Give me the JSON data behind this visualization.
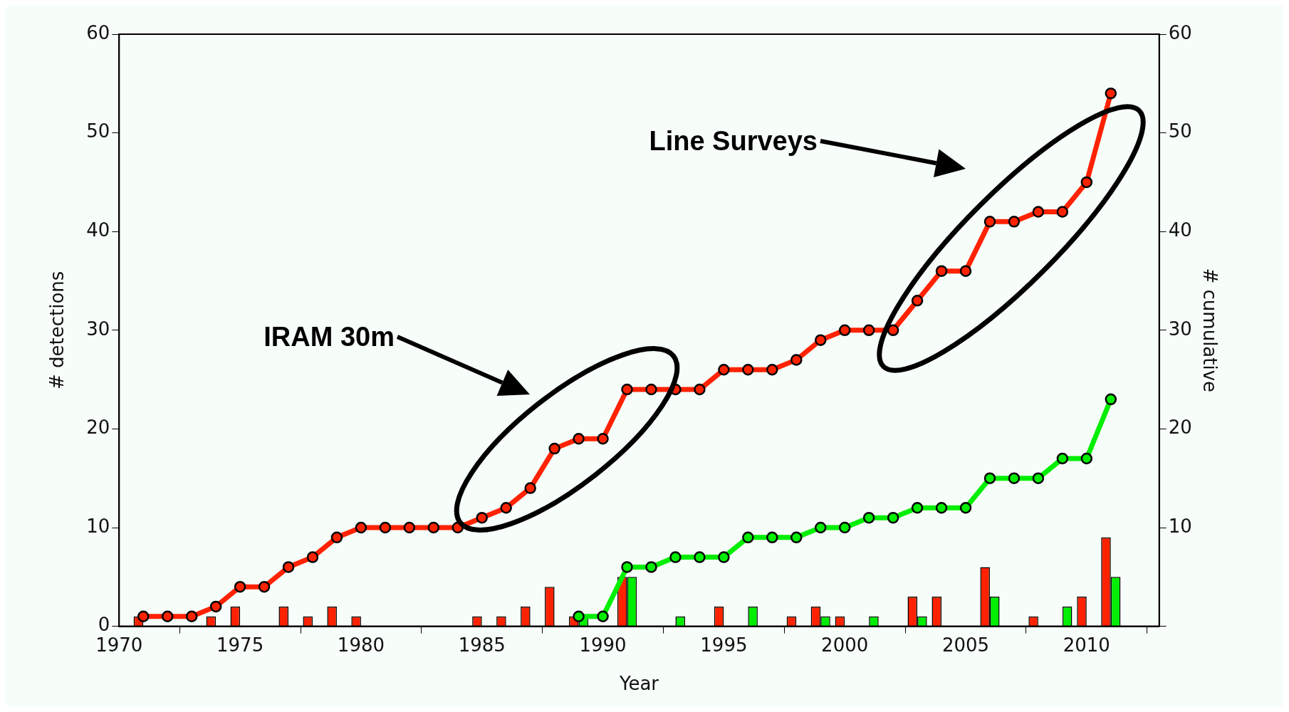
{
  "chart_data": {
    "type": "bar",
    "xlabel": "Year",
    "ylabel": "# detections",
    "y2label": "# cumulative",
    "xlim": [
      1970,
      2013
    ],
    "xticks": [
      1970,
      1975,
      1980,
      1985,
      1990,
      1995,
      2000,
      2005,
      2010
    ],
    "ylim": [
      0,
      60
    ],
    "yticks": [
      0,
      10,
      20,
      30,
      40,
      50,
      60
    ],
    "y2lim": [
      0,
      60
    ],
    "y2ticks": [
      {
        "value": 0,
        "label": null
      },
      10,
      20,
      30,
      40,
      50,
      60
    ],
    "grid": false,
    "legend": false,
    "marker": "circle",
    "line_style": "solid",
    "series": [
      {
        "color": "#ff2200",
        "x": [
          1971,
          1974,
          1975,
          1977,
          1978,
          1979,
          1980,
          1985,
          1986,
          1987,
          1988,
          1989,
          1991,
          1995,
          1998,
          1999,
          2000,
          2003,
          2004,
          2006,
          2008,
          2010,
          2011
        ],
        "values": [
          1,
          1,
          2,
          2,
          1,
          2,
          1,
          1,
          1,
          2,
          4,
          1,
          5,
          2,
          1,
          2,
          1,
          3,
          3,
          6,
          1,
          3,
          9
        ]
      },
      {
        "color": "#00ee00",
        "x": [
          1989,
          1991,
          1993,
          1996,
          1999,
          2001,
          2003,
          2006,
          2009,
          2011
        ],
        "values": [
          1,
          5,
          1,
          2,
          1,
          1,
          1,
          3,
          2,
          5
        ]
      },
      {
        "type": "line",
        "color": "#ff2200",
        "x": [
          1971,
          1972,
          1973,
          1974,
          1975,
          1976,
          1977,
          1978,
          1979,
          1980,
          1981,
          1982,
          1983,
          1984,
          1985,
          1986,
          1987,
          1988,
          1989,
          1990,
          1991,
          1992,
          1993,
          1994,
          1995,
          1996,
          1997,
          1998,
          1999,
          2000,
          2001,
          2002,
          2003,
          2004,
          2005,
          2006,
          2007,
          2008,
          2009,
          2010,
          2011
        ],
        "values": [
          1,
          1,
          1,
          2,
          4,
          4,
          6,
          7,
          9,
          10,
          10,
          10,
          10,
          10,
          11,
          12,
          14,
          18,
          19,
          19,
          24,
          24,
          24,
          24,
          26,
          26,
          26,
          27,
          29,
          30,
          30,
          30,
          33,
          36,
          36,
          41,
          41,
          42,
          42,
          45,
          54
        ]
      },
      {
        "type": "line",
        "color": "#00ee00",
        "x": [
          1989,
          1990,
          1991,
          1992,
          1993,
          1994,
          1995,
          1996,
          1997,
          1998,
          1999,
          2000,
          2001,
          2002,
          2003,
          2004,
          2005,
          2006,
          2007,
          2008,
          2009,
          2010,
          2011
        ],
        "values": [
          1,
          1,
          6,
          6,
          7,
          7,
          7,
          9,
          9,
          9,
          10,
          10,
          11,
          11,
          12,
          12,
          12,
          15,
          15,
          15,
          17,
          17,
          23
        ]
      }
    ],
    "annotations": [
      "IRAM 30m",
      "Line Surveys"
    ]
  }
}
